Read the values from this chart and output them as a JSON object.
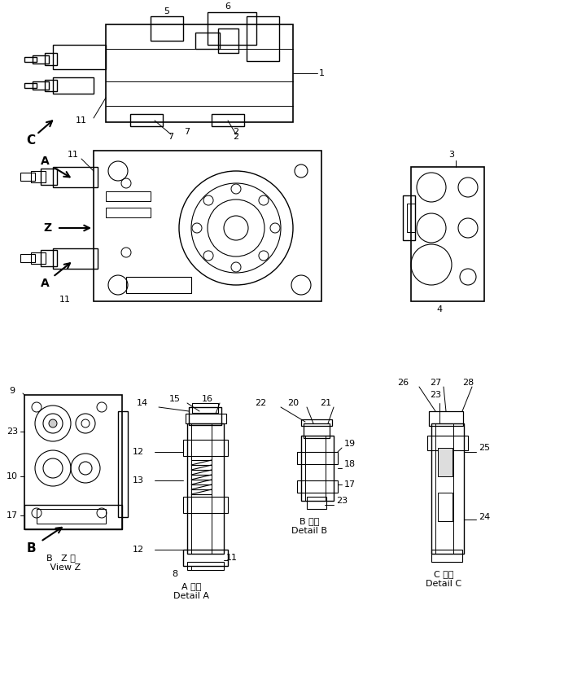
{
  "background_color": "#ffffff",
  "line_color": "#000000",
  "title": "",
  "labels": {
    "top_view_numbers": [
      "5",
      "6",
      "7",
      "2",
      "1",
      "11",
      "C"
    ],
    "front_view_numbers": [
      "A",
      "Z",
      "A",
      "11"
    ],
    "right_view_numbers": [
      "3",
      "4"
    ],
    "bottom_left_numbers": [
      "9",
      "23",
      "10",
      "17",
      "B"
    ],
    "detail_a_numbers": [
      "14",
      "15",
      "16",
      "12",
      "13",
      "12",
      "8",
      "11"
    ],
    "detail_b_numbers": [
      "22",
      "20",
      "21",
      "19",
      "18",
      "17",
      "23"
    ],
    "detail_c_numbers": [
      "26",
      "27",
      "28",
      "25",
      "24",
      "23"
    ],
    "view_labels": [
      "B  Z 視\n   View Z",
      "A 詳細\n  Detail A",
      "B 詳細\n  Detail B",
      "C 詳細\n  Detail C"
    ]
  },
  "figsize": [
    6.93,
    8.4
  ],
  "dpi": 100
}
